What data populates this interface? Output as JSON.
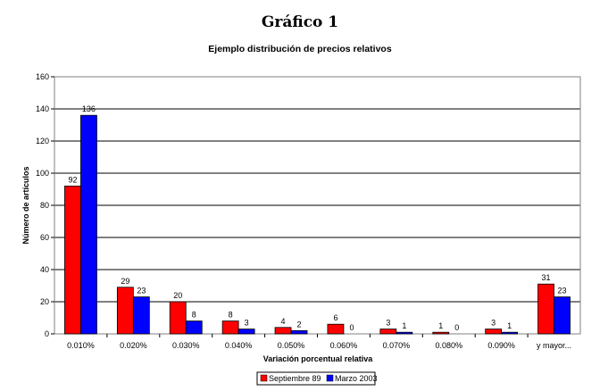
{
  "heading": "Gráfico 1",
  "chart_data": {
    "type": "bar",
    "title": "Ejemplo distribución de precios relativos",
    "xlabel": "Variación porcentual relativa",
    "ylabel": "Número de artículos",
    "categories": [
      "0.010%",
      "0.020%",
      "0.030%",
      "0.040%",
      "0.050%",
      "0.060%",
      "0.070%",
      "0.080%",
      "0.090%",
      "y mayor..."
    ],
    "series": [
      {
        "name": "Septiembre 89",
        "color": "#ff0000",
        "values": [
          92,
          29,
          20,
          8,
          4,
          6,
          3,
          1,
          3,
          31
        ]
      },
      {
        "name": "Marzo 2003",
        "color": "#0000ff",
        "values": [
          136,
          23,
          8,
          3,
          2,
          0,
          1,
          0,
          1,
          23
        ]
      }
    ],
    "ylim": [
      0,
      160
    ],
    "yticks": [
      0,
      20,
      40,
      60,
      80,
      100,
      120,
      140,
      160
    ],
    "grid": true,
    "legend_position": "bottom",
    "data_labels": true
  }
}
